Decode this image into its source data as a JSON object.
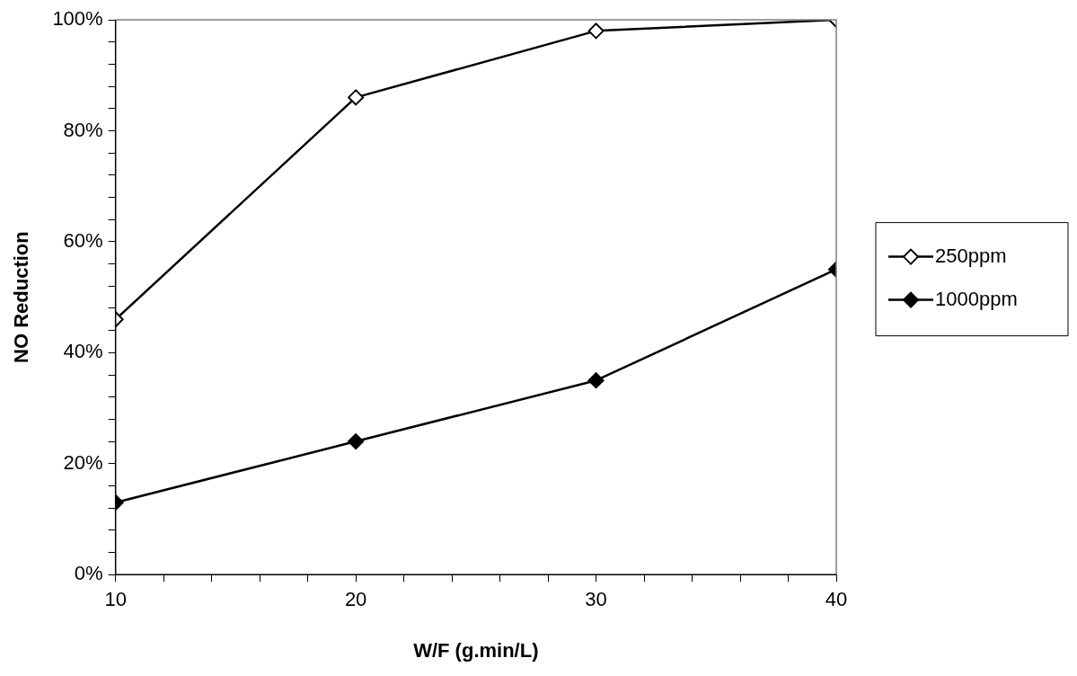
{
  "chart_data": {
    "type": "line",
    "xlabel": "W/F (g.min/L)",
    "ylabel": "NO Reduction",
    "x": [
      10,
      20,
      30,
      40
    ],
    "series": [
      {
        "name": "250ppm",
        "color": "#000000",
        "marker": "diamond",
        "values": [
          46,
          86,
          98,
          100
        ]
      },
      {
        "name": "1000ppm",
        "color": "#000000",
        "marker": "diamond",
        "values": [
          13,
          24,
          35,
          55
        ]
      }
    ],
    "xlim": [
      10,
      40
    ],
    "xticks": [
      10,
      {
        "value": 12,
        "label": null
      },
      {
        "value": 14,
        "label": null
      },
      {
        "value": 16,
        "label": null
      },
      {
        "value": 18,
        "label": null
      },
      20,
      {
        "value": 22,
        "label": null
      },
      {
        "value": 24,
        "label": null
      },
      {
        "value": 26,
        "label": null
      },
      {
        "value": 28,
        "label": null
      },
      30,
      {
        "value": 32,
        "label": null
      },
      {
        "value": 34,
        "label": null
      },
      {
        "value": 36,
        "label": null
      },
      {
        "value": 38,
        "label": null
      },
      40
    ],
    "ylim": [
      0,
      100
    ],
    "yticks": [
      {
        "value": 0,
        "label": "0%"
      },
      {
        "value": 4,
        "label": null
      },
      {
        "value": 8,
        "label": null
      },
      {
        "value": 12,
        "label": null
      },
      {
        "value": 16,
        "label": null
      },
      {
        "value": 20,
        "label": "20%"
      },
      {
        "value": 24,
        "label": null
      },
      {
        "value": 28,
        "label": null
      },
      {
        "value": 32,
        "label": null
      },
      {
        "value": 36,
        "label": null
      },
      {
        "value": 40,
        "label": "40%"
      },
      {
        "value": 44,
        "label": null
      },
      {
        "value": 48,
        "label": null
      },
      {
        "value": 52,
        "label": null
      },
      {
        "value": 56,
        "label": null
      },
      {
        "value": 60,
        "label": "60%"
      },
      {
        "value": 64,
        "label": null
      },
      {
        "value": 68,
        "label": null
      },
      {
        "value": 72,
        "label": null
      },
      {
        "value": 76,
        "label": null
      },
      {
        "value": 80,
        "label": "80%"
      },
      {
        "value": 84,
        "label": null
      },
      {
        "value": 88,
        "label": null
      },
      {
        "value": 92,
        "label": null
      },
      {
        "value": 96,
        "label": null
      },
      {
        "value": 100,
        "label": "100%"
      }
    ],
    "grid": false,
    "legend": "right",
    "line_style": "solid"
  }
}
